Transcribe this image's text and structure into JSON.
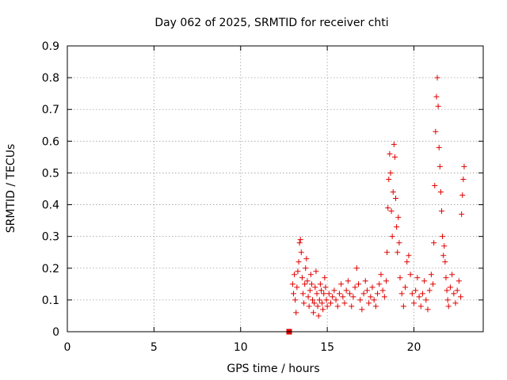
{
  "chart_data": {
    "type": "scatter",
    "title": "Day 062 of 2025, SRMTID for receiver chti",
    "xlabel": "GPS time / hours",
    "ylabel": "SRMTID / TECUs",
    "xlim": [
      0,
      24
    ],
    "ylim": [
      0,
      0.9
    ],
    "xticks": [
      0,
      5,
      10,
      15,
      20
    ],
    "yticks": [
      0,
      0.1,
      0.2,
      0.3,
      0.4,
      0.5,
      0.6,
      0.7,
      0.8,
      0.9
    ],
    "xtick_labels": [
      "0",
      "5",
      "10",
      "15",
      "20"
    ],
    "ytick_labels": [
      "0",
      "0.1",
      "0.2",
      "0.3",
      "0.4",
      "0.5",
      "0.6",
      "0.7",
      "0.8",
      "0.9"
    ],
    "grid": true,
    "marker": "plus",
    "color": "#e00000",
    "zero_marker": {
      "x": 12.8,
      "y": 0,
      "shape": "square"
    },
    "series": [
      {
        "name": "SRMTID",
        "points": [
          [
            13.0,
            0.15
          ],
          [
            13.05,
            0.12
          ],
          [
            13.1,
            0.18
          ],
          [
            13.15,
            0.1
          ],
          [
            13.2,
            0.06
          ],
          [
            13.25,
            0.14
          ],
          [
            13.3,
            0.19
          ],
          [
            13.35,
            0.22
          ],
          [
            13.4,
            0.28
          ],
          [
            13.45,
            0.29
          ],
          [
            13.5,
            0.25
          ],
          [
            13.55,
            0.17
          ],
          [
            13.6,
            0.12
          ],
          [
            13.65,
            0.09
          ],
          [
            13.7,
            0.15
          ],
          [
            13.75,
            0.2
          ],
          [
            13.8,
            0.23
          ],
          [
            13.85,
            0.16
          ],
          [
            13.9,
            0.11
          ],
          [
            13.95,
            0.08
          ],
          [
            14.0,
            0.13
          ],
          [
            14.05,
            0.18
          ],
          [
            14.1,
            0.15
          ],
          [
            14.15,
            0.1
          ],
          [
            14.2,
            0.06
          ],
          [
            14.25,
            0.09
          ],
          [
            14.3,
            0.14
          ],
          [
            14.35,
            0.19
          ],
          [
            14.4,
            0.12
          ],
          [
            14.45,
            0.08
          ],
          [
            14.5,
            0.05
          ],
          [
            14.55,
            0.1
          ],
          [
            14.6,
            0.15
          ],
          [
            14.65,
            0.13
          ],
          [
            14.7,
            0.09
          ],
          [
            14.75,
            0.07
          ],
          [
            14.8,
            0.12
          ],
          [
            14.85,
            0.17
          ],
          [
            14.9,
            0.14
          ],
          [
            14.95,
            0.1
          ],
          [
            15.0,
            0.08
          ],
          [
            15.1,
            0.12
          ],
          [
            15.2,
            0.09
          ],
          [
            15.3,
            0.11
          ],
          [
            15.4,
            0.13
          ],
          [
            15.5,
            0.1
          ],
          [
            15.6,
            0.08
          ],
          [
            15.7,
            0.12
          ],
          [
            15.8,
            0.15
          ],
          [
            15.9,
            0.11
          ],
          [
            16.0,
            0.09
          ],
          [
            16.1,
            0.13
          ],
          [
            16.2,
            0.16
          ],
          [
            16.3,
            0.12
          ],
          [
            16.4,
            0.08
          ],
          [
            16.5,
            0.11
          ],
          [
            16.6,
            0.14
          ],
          [
            16.7,
            0.2
          ],
          [
            16.8,
            0.15
          ],
          [
            16.9,
            0.1
          ],
          [
            17.0,
            0.07
          ],
          [
            17.1,
            0.12
          ],
          [
            17.2,
            0.16
          ],
          [
            17.3,
            0.13
          ],
          [
            17.4,
            0.09
          ],
          [
            17.5,
            0.11
          ],
          [
            17.6,
            0.14
          ],
          [
            17.7,
            0.1
          ],
          [
            17.8,
            0.08
          ],
          [
            17.9,
            0.12
          ],
          [
            18.0,
            0.15
          ],
          [
            18.1,
            0.18
          ],
          [
            18.2,
            0.13
          ],
          [
            18.3,
            0.11
          ],
          [
            18.4,
            0.16
          ],
          [
            18.45,
            0.25
          ],
          [
            18.5,
            0.39
          ],
          [
            18.55,
            0.48
          ],
          [
            18.6,
            0.56
          ],
          [
            18.65,
            0.5
          ],
          [
            18.7,
            0.38
          ],
          [
            18.75,
            0.3
          ],
          [
            18.8,
            0.44
          ],
          [
            18.85,
            0.59
          ],
          [
            18.9,
            0.55
          ],
          [
            18.95,
            0.42
          ],
          [
            19.0,
            0.33
          ],
          [
            19.05,
            0.25
          ],
          [
            19.1,
            0.36
          ],
          [
            19.15,
            0.28
          ],
          [
            19.2,
            0.17
          ],
          [
            19.3,
            0.12
          ],
          [
            19.4,
            0.08
          ],
          [
            19.5,
            0.14
          ],
          [
            19.6,
            0.22
          ],
          [
            19.7,
            0.24
          ],
          [
            19.8,
            0.18
          ],
          [
            19.9,
            0.12
          ],
          [
            20.0,
            0.09
          ],
          [
            20.1,
            0.13
          ],
          [
            20.2,
            0.17
          ],
          [
            20.3,
            0.11
          ],
          [
            20.4,
            0.08
          ],
          [
            20.5,
            0.12
          ],
          [
            20.6,
            0.16
          ],
          [
            20.7,
            0.1
          ],
          [
            20.8,
            0.07
          ],
          [
            20.9,
            0.13
          ],
          [
            21.0,
            0.18
          ],
          [
            21.1,
            0.15
          ],
          [
            21.15,
            0.28
          ],
          [
            21.2,
            0.46
          ],
          [
            21.25,
            0.63
          ],
          [
            21.3,
            0.74
          ],
          [
            21.35,
            0.8
          ],
          [
            21.4,
            0.71
          ],
          [
            21.45,
            0.58
          ],
          [
            21.5,
            0.52
          ],
          [
            21.55,
            0.44
          ],
          [
            21.6,
            0.38
          ],
          [
            21.65,
            0.3
          ],
          [
            21.7,
            0.24
          ],
          [
            21.75,
            0.27
          ],
          [
            21.8,
            0.22
          ],
          [
            21.85,
            0.17
          ],
          [
            21.9,
            0.13
          ],
          [
            21.95,
            0.1
          ],
          [
            22.0,
            0.08
          ],
          [
            22.1,
            0.14
          ],
          [
            22.2,
            0.18
          ],
          [
            22.3,
            0.12
          ],
          [
            22.4,
            0.09
          ],
          [
            22.5,
            0.13
          ],
          [
            22.6,
            0.16
          ],
          [
            22.7,
            0.11
          ],
          [
            22.75,
            0.37
          ],
          [
            22.8,
            0.43
          ],
          [
            22.85,
            0.48
          ],
          [
            22.9,
            0.52
          ]
        ]
      }
    ]
  }
}
